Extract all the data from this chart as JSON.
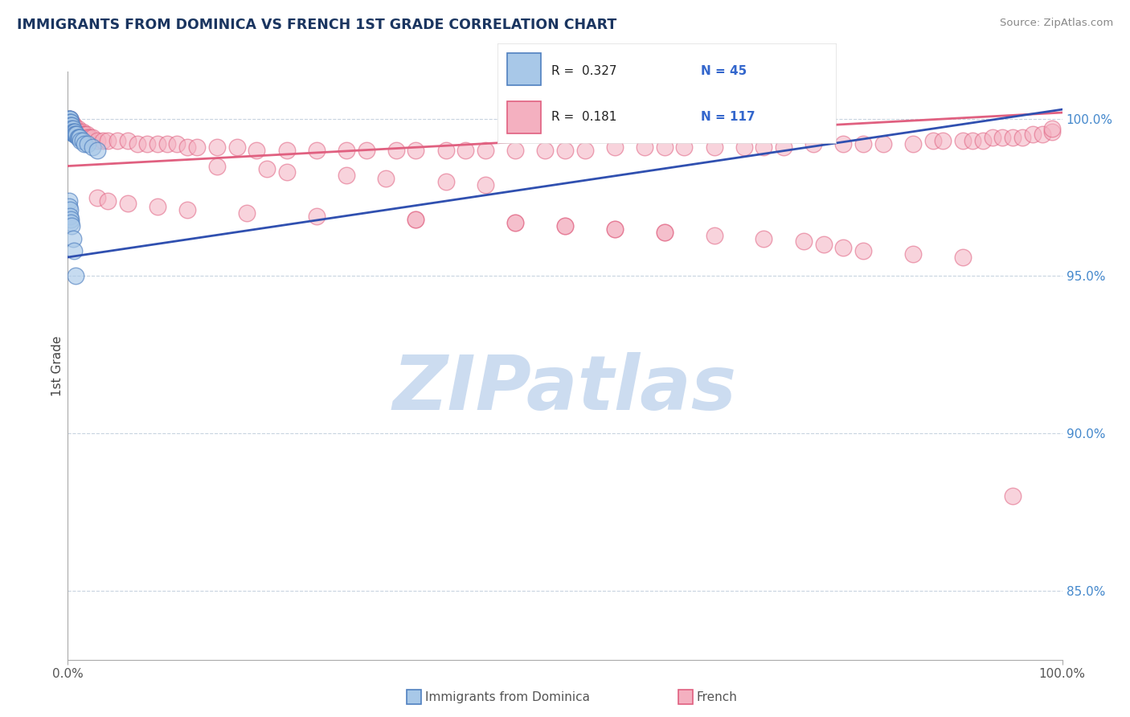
{
  "title": "IMMIGRANTS FROM DOMINICA VS FRENCH 1ST GRADE CORRELATION CHART",
  "source": "Source: ZipAtlas.com",
  "ylabel": "1st Grade",
  "legend_blue_label": "Immigrants from Dominica",
  "legend_pink_label": "French",
  "R_blue": 0.327,
  "N_blue": 45,
  "R_pink": 0.181,
  "N_pink": 117,
  "color_blue_face": "#a8c8e8",
  "color_blue_edge": "#5080c0",
  "color_pink_face": "#f4b0c0",
  "color_pink_edge": "#e06080",
  "color_blue_line": "#3050b0",
  "color_pink_line": "#e06080",
  "color_grid": "#c8d4e0",
  "watermark_color": "#ccdcf0",
  "watermark_text": "ZIPatlas",
  "ytick_values": [
    0.85,
    0.9,
    0.95,
    1.0
  ],
  "ytick_labels": [
    "85.0%",
    "90.0%",
    "95.0%",
    "100.0%"
  ],
  "xmin": 0.0,
  "xmax": 1.0,
  "ymin": 0.828,
  "ymax": 1.015,
  "blue_x": [
    0.001,
    0.001,
    0.001,
    0.001,
    0.001,
    0.002,
    0.002,
    0.002,
    0.002,
    0.002,
    0.002,
    0.003,
    0.003,
    0.003,
    0.003,
    0.004,
    0.004,
    0.004,
    0.005,
    0.005,
    0.006,
    0.006,
    0.007,
    0.007,
    0.008,
    0.009,
    0.01,
    0.011,
    0.012,
    0.013,
    0.015,
    0.017,
    0.02,
    0.025,
    0.03,
    0.001,
    0.001,
    0.002,
    0.002,
    0.003,
    0.003,
    0.004,
    0.005,
    0.006,
    0.008
  ],
  "blue_y": [
    1.0,
    1.0,
    0.999,
    0.999,
    0.998,
    1.0,
    1.0,
    0.999,
    0.998,
    0.997,
    0.996,
    0.999,
    0.998,
    0.997,
    0.996,
    0.998,
    0.997,
    0.996,
    0.997,
    0.996,
    0.996,
    0.995,
    0.996,
    0.995,
    0.995,
    0.995,
    0.994,
    0.994,
    0.994,
    0.993,
    0.993,
    0.992,
    0.992,
    0.991,
    0.99,
    0.974,
    0.972,
    0.971,
    0.969,
    0.968,
    0.967,
    0.966,
    0.962,
    0.958,
    0.95
  ],
  "pink_x": [
    0.001,
    0.002,
    0.002,
    0.003,
    0.003,
    0.004,
    0.004,
    0.005,
    0.005,
    0.006,
    0.006,
    0.007,
    0.007,
    0.008,
    0.008,
    0.009,
    0.01,
    0.01,
    0.011,
    0.012,
    0.013,
    0.014,
    0.015,
    0.016,
    0.017,
    0.018,
    0.019,
    0.02,
    0.022,
    0.025,
    0.03,
    0.035,
    0.04,
    0.05,
    0.06,
    0.07,
    0.08,
    0.09,
    0.1,
    0.11,
    0.12,
    0.13,
    0.15,
    0.17,
    0.19,
    0.22,
    0.25,
    0.28,
    0.3,
    0.33,
    0.35,
    0.38,
    0.4,
    0.42,
    0.45,
    0.48,
    0.5,
    0.52,
    0.55,
    0.58,
    0.6,
    0.62,
    0.65,
    0.68,
    0.7,
    0.72,
    0.75,
    0.78,
    0.8,
    0.82,
    0.85,
    0.87,
    0.88,
    0.9,
    0.91,
    0.92,
    0.93,
    0.94,
    0.95,
    0.96,
    0.97,
    0.98,
    0.99,
    0.99,
    0.03,
    0.04,
    0.06,
    0.09,
    0.12,
    0.18,
    0.25,
    0.35,
    0.45,
    0.5,
    0.55,
    0.6,
    0.38,
    0.42,
    0.28,
    0.32,
    0.15,
    0.2,
    0.22,
    0.35,
    0.45,
    0.5,
    0.55,
    0.6,
    0.65,
    0.7,
    0.74,
    0.76,
    0.78,
    0.8,
    0.85,
    0.9,
    0.95
  ],
  "pink_y": [
    0.999,
    1.0,
    0.998,
    0.999,
    0.997,
    0.999,
    0.997,
    0.998,
    0.997,
    0.998,
    0.996,
    0.997,
    0.996,
    0.997,
    0.996,
    0.996,
    0.997,
    0.995,
    0.996,
    0.996,
    0.995,
    0.995,
    0.996,
    0.995,
    0.995,
    0.994,
    0.995,
    0.994,
    0.994,
    0.994,
    0.993,
    0.993,
    0.993,
    0.993,
    0.993,
    0.992,
    0.992,
    0.992,
    0.992,
    0.992,
    0.991,
    0.991,
    0.991,
    0.991,
    0.99,
    0.99,
    0.99,
    0.99,
    0.99,
    0.99,
    0.99,
    0.99,
    0.99,
    0.99,
    0.99,
    0.99,
    0.99,
    0.99,
    0.991,
    0.991,
    0.991,
    0.991,
    0.991,
    0.991,
    0.991,
    0.991,
    0.992,
    0.992,
    0.992,
    0.992,
    0.992,
    0.993,
    0.993,
    0.993,
    0.993,
    0.993,
    0.994,
    0.994,
    0.994,
    0.994,
    0.995,
    0.995,
    0.996,
    0.997,
    0.975,
    0.974,
    0.973,
    0.972,
    0.971,
    0.97,
    0.969,
    0.968,
    0.967,
    0.966,
    0.965,
    0.964,
    0.98,
    0.979,
    0.982,
    0.981,
    0.985,
    0.984,
    0.983,
    0.968,
    0.967,
    0.966,
    0.965,
    0.964,
    0.963,
    0.962,
    0.961,
    0.96,
    0.959,
    0.958,
    0.957,
    0.956,
    0.88
  ],
  "blue_line_x0": 0.0,
  "blue_line_x1": 1.0,
  "blue_line_y0": 0.956,
  "blue_line_y1": 1.003,
  "pink_line_x0": 0.0,
  "pink_line_x1": 1.0,
  "pink_line_y0": 0.985,
  "pink_line_y1": 1.002
}
